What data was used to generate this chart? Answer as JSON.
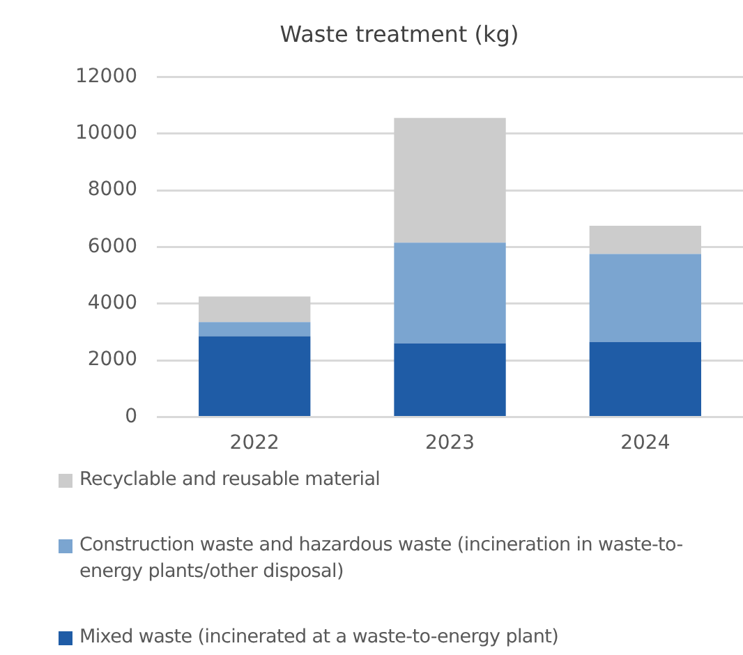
{
  "chart_data": {
    "type": "bar",
    "title": "Waste treatment (kg)",
    "categories": [
      "2022",
      "2023",
      "2024"
    ],
    "stacked": true,
    "ylim": [
      0,
      12000
    ],
    "yticks": [
      0,
      2000,
      4000,
      6000,
      8000,
      10000,
      12000
    ],
    "grid": "y",
    "legend": "bottom",
    "series": [
      {
        "name": "Mixed waste (incinerated at a waste-to-energy plant)",
        "color": "#1f5ca6",
        "values": [
          2850,
          2600,
          2650
        ]
      },
      {
        "name": "Construction waste and hazardous waste (incineration in waste-to-energy plants/other disposal)",
        "color": "#7ba5d0",
        "values": [
          500,
          3550,
          3100
        ]
      },
      {
        "name": "Recyclable and reusable material",
        "color": "#cccccc",
        "values": [
          900,
          4400,
          1000
        ]
      }
    ]
  }
}
